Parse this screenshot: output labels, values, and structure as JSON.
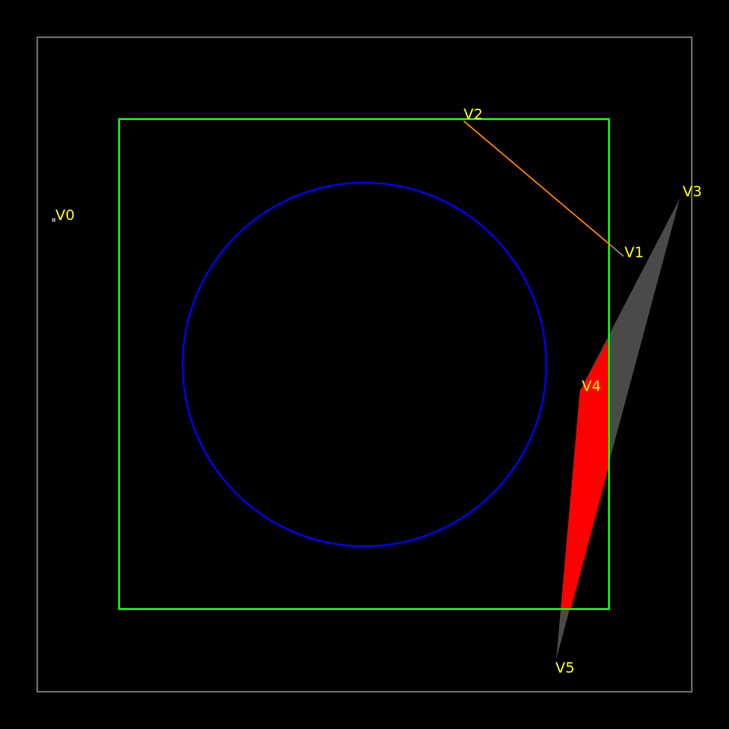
{
  "colors": {
    "background": "#000000",
    "outer_frame": "#808080",
    "clip_rect": "#00ff00",
    "circle": "#0000ff",
    "edge_v1_v2": "#ff8000",
    "polygon_full": "#4a4a4a",
    "polygon_clipped": "#ff0000",
    "label": "#ffff00",
    "point": "#808080"
  },
  "vertices": [
    {
      "id": "v0",
      "label": "V0"
    },
    {
      "id": "v1",
      "label": "V1"
    },
    {
      "id": "v2",
      "label": "V2"
    },
    {
      "id": "v3",
      "label": "V3"
    },
    {
      "id": "v4",
      "label": "V4"
    },
    {
      "id": "v5",
      "label": "V5"
    }
  ]
}
